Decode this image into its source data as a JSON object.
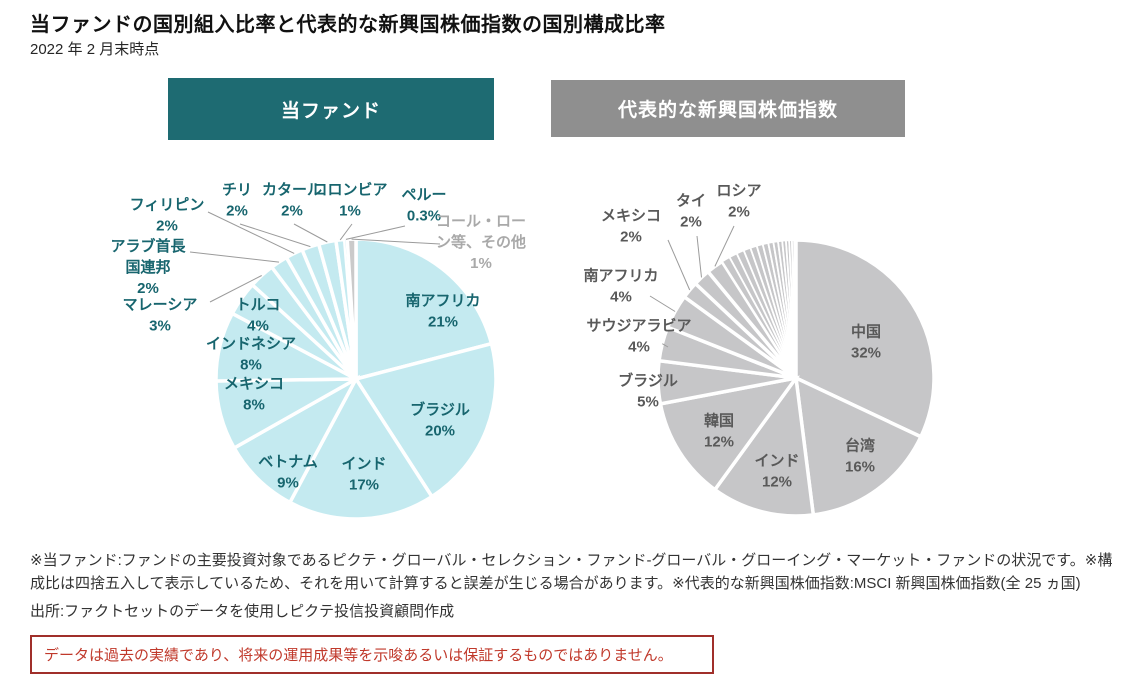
{
  "page": {
    "title": "当ファンドの国別組入比率と代表的な新興国株価指数の国別構成比率",
    "subtitle": "2022 年 2 月末時点",
    "footnote": "※当ファンド:ファンドの主要投資対象であるピクテ・グローバル・セレクション・ファンド-グローバル・グローイング・マーケット・ファンドの状況です。※構成比は四捨五入して表示しているため、それを用いて計算すると誤差が生じる場合があります。※代表的な新興国株価指数:MSCI 新興国株価指数(全 25 ヵ国)",
    "source": "出所:ファクトセットのデータを使用しピクテ投信投資顧問作成",
    "disclaimer": "データは過去の実績であり、将来の運用成果等を示唆あるいは保証するものではありません。"
  },
  "colors": {
    "fund_header_bg": "#1e6b72",
    "index_header_bg": "#8f8f8f",
    "header_text": "#ffffff",
    "fund_slice": "#c4eaf0",
    "fund_other_slice": "#cacaca",
    "fund_label": "#17656e",
    "index_slice": "#c6c6c8",
    "index_label": "#595959",
    "muted_label": "#a9a9a9",
    "leader_line": "#9b9b9b",
    "disclaimer_border": "#a02f2a",
    "disclaimer_text": "#c0392b"
  },
  "chart_data": [
    {
      "type": "pie",
      "title": "当ファンド",
      "unit": "%",
      "legend_position": "none",
      "series": [
        {
          "label": "南アフリカ",
          "value": 21,
          "display": "21%"
        },
        {
          "label": "ブラジル",
          "value": 20,
          "display": "20%"
        },
        {
          "label": "インド",
          "value": 17,
          "display": "17%"
        },
        {
          "label": "ベトナム",
          "value": 9,
          "display": "9%"
        },
        {
          "label": "メキシコ",
          "value": 8,
          "display": "8%"
        },
        {
          "label": "インドネシア",
          "value": 8,
          "display": "8%"
        },
        {
          "label": "トルコ",
          "value": 4,
          "display": "4%"
        },
        {
          "label": "マレーシア",
          "value": 3,
          "display": "3%"
        },
        {
          "label": "アラブ首長国連邦",
          "value": 2,
          "display": "2%"
        },
        {
          "label": "フィリピン",
          "value": 2,
          "display": "2%"
        },
        {
          "label": "チリ",
          "value": 2,
          "display": "2%"
        },
        {
          "label": "カタール",
          "value": 2,
          "display": "2%"
        },
        {
          "label": "コロンビア",
          "value": 1,
          "display": "1%"
        },
        {
          "label": "ペルー",
          "value": 0.3,
          "display": "0.3%"
        },
        {
          "label": "コール・ローン等、その他",
          "value": 1,
          "display": "1%",
          "muted": true
        }
      ]
    },
    {
      "type": "pie",
      "title": "代表的な新興国株価指数",
      "unit": "%",
      "legend_position": "none",
      "series": [
        {
          "label": "中国",
          "value": 32,
          "display": "32%"
        },
        {
          "label": "台湾",
          "value": 16,
          "display": "16%"
        },
        {
          "label": "インド",
          "value": 12,
          "display": "12%"
        },
        {
          "label": "韓国",
          "value": 12,
          "display": "12%"
        },
        {
          "label": "ブラジル",
          "value": 5,
          "display": "5%"
        },
        {
          "label": "サウジアラビア",
          "value": 4,
          "display": "4%"
        },
        {
          "label": "南アフリカ",
          "value": 4,
          "display": "4%"
        },
        {
          "label": "メキシコ",
          "value": 2,
          "display": "2%"
        },
        {
          "label": "タイ",
          "value": 2,
          "display": "2%"
        },
        {
          "label": "ロシア",
          "value": 2,
          "display": "2%"
        }
      ],
      "unlabeled_remainder": {
        "percent": 9,
        "slice_count": 15
      }
    }
  ]
}
